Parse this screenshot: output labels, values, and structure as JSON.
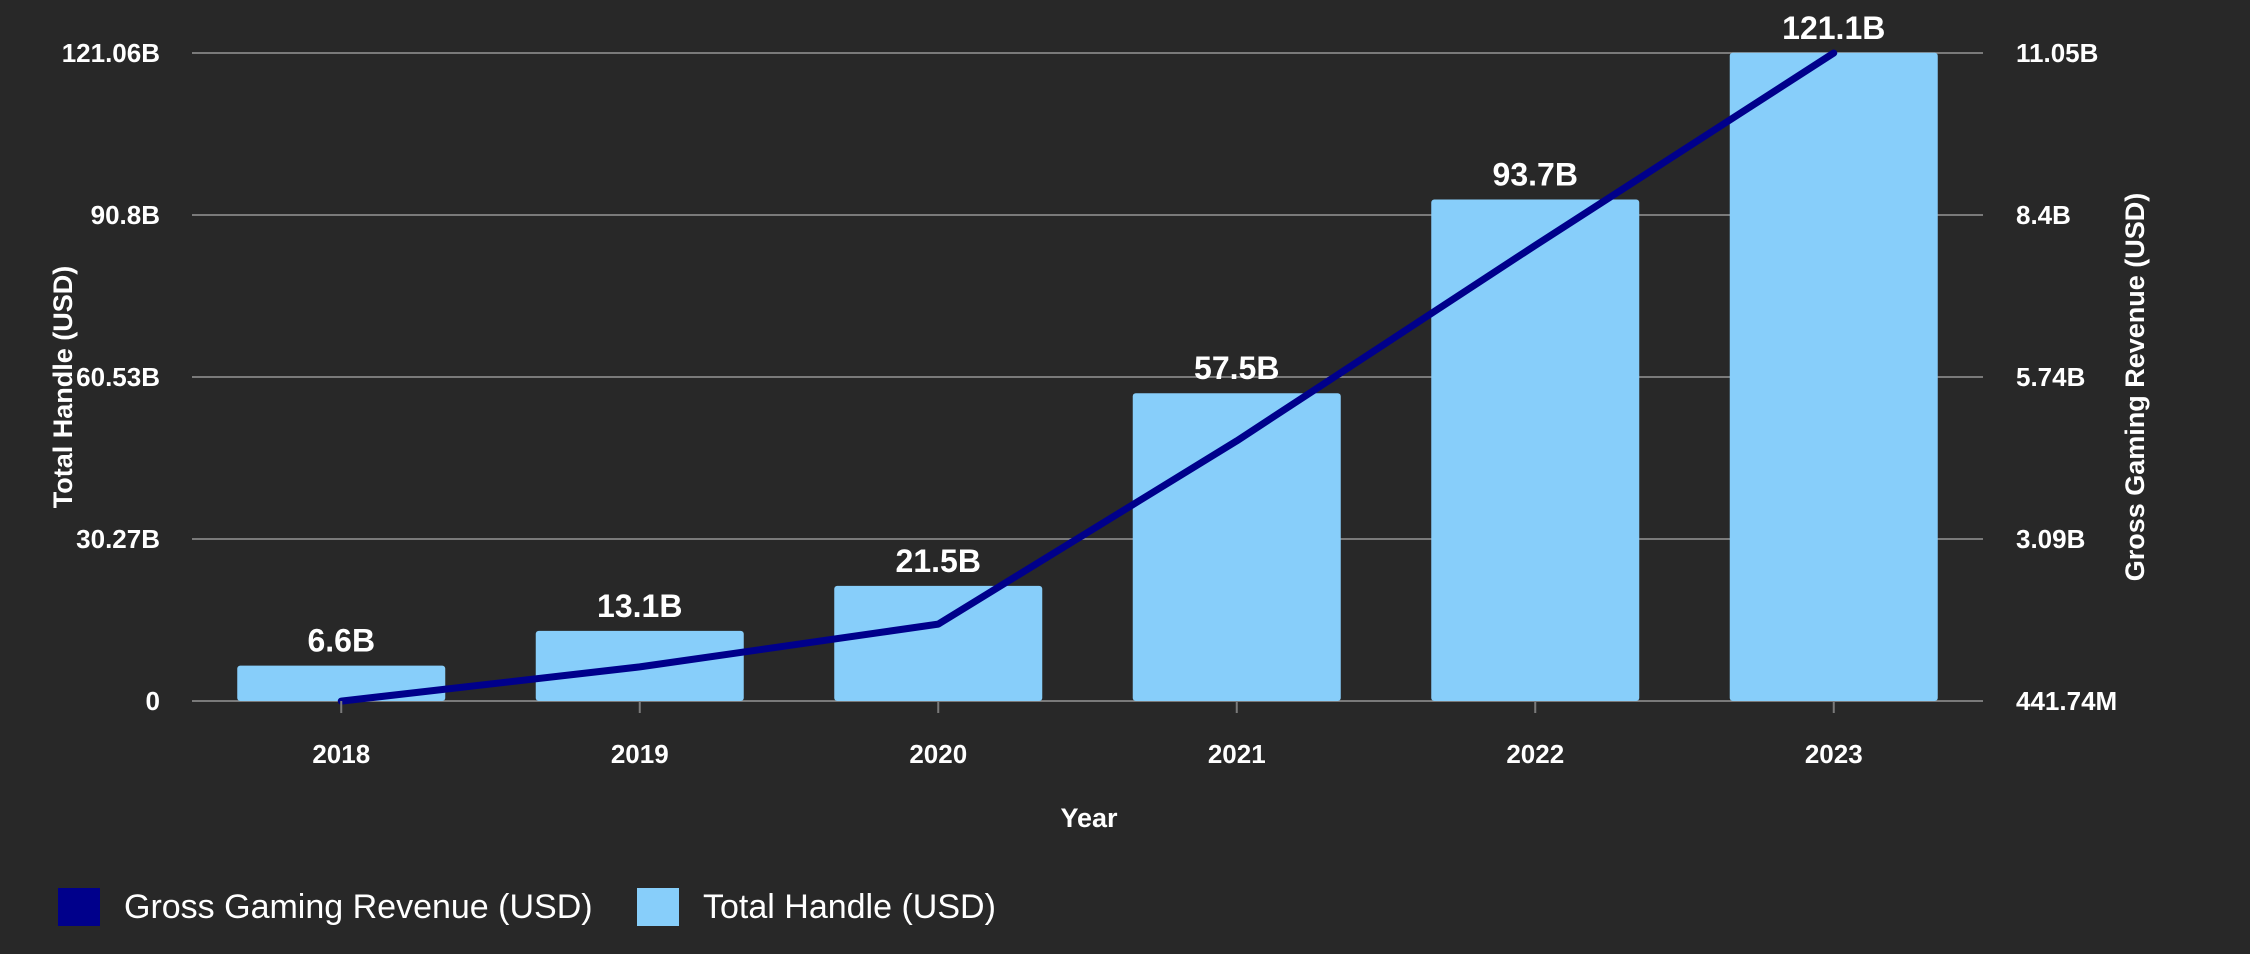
{
  "chart_data": {
    "type": "bar",
    "categories": [
      "2018",
      "2019",
      "2020",
      "2021",
      "2022",
      "2023"
    ],
    "xlabel": "Year",
    "ylabel": "Total Handle (USD)",
    "y2label": "Gross Gaming Revenue (USD)",
    "y_ticks": [
      "0",
      "30.27B",
      "60.53B",
      "90.8B",
      "121.06B"
    ],
    "ylim": [
      0,
      121.06
    ],
    "y2_ticks": [
      "441.74M",
      "3.09B",
      "5.74B",
      "8.4B",
      "11.05B"
    ],
    "y2lim": [
      0.44174,
      11.05
    ],
    "grid": true,
    "legend_position": "bottom-left",
    "series": [
      {
        "name": "Total Handle (USD)",
        "type": "bar",
        "color": "#87cefa",
        "values": [
          6.6,
          13.1,
          21.5,
          57.5,
          93.7,
          121.1
        ],
        "labels": [
          "6.6B",
          "13.1B",
          "21.5B",
          "57.5B",
          "93.7B",
          "121.1B"
        ]
      },
      {
        "name": "Gross Gaming Revenue (USD)",
        "type": "line",
        "color": "#00008b",
        "values": [
          0.44,
          1.0,
          1.7,
          4.7,
          7.9,
          11.05
        ]
      }
    ],
    "legend": [
      "Gross Gaming Revenue (USD)",
      "Total Handle (USD)"
    ]
  }
}
